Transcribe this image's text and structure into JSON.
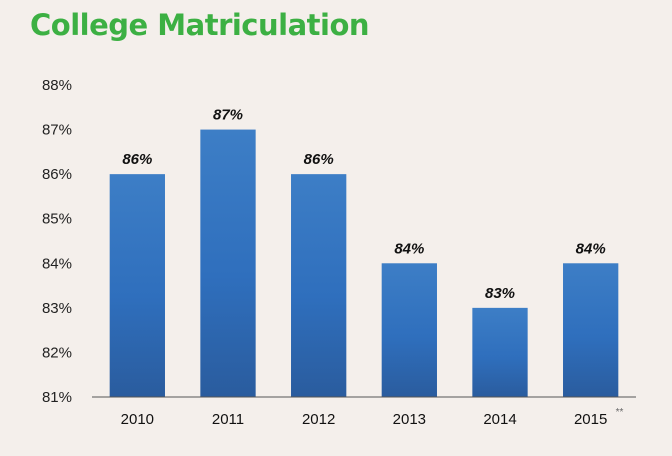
{
  "chart_data": {
    "type": "bar",
    "title": "College Matriculation",
    "categories": [
      "2010",
      "2011",
      "2012",
      "2013",
      "2014",
      "2015"
    ],
    "category_note": {
      "index": 5,
      "text": "**"
    },
    "values": [
      86,
      87,
      86,
      84,
      83,
      84
    ],
    "data_labels": [
      "86%",
      "87%",
      "86%",
      "84%",
      "83%",
      "84%"
    ],
    "yticks": [
      81,
      82,
      83,
      84,
      85,
      86,
      87,
      88
    ],
    "ytick_labels": [
      "81%",
      "82%",
      "83%",
      "84%",
      "85%",
      "86%",
      "87%",
      "88%"
    ],
    "ylim": [
      81,
      88
    ],
    "grid": false,
    "legend": "none",
    "colors": {
      "bar": "#2f6fbd",
      "bar_light": "#3d7ec6",
      "bar_dark": "#2a5c9e",
      "title": "#3cb043",
      "axis": "#555555"
    }
  }
}
